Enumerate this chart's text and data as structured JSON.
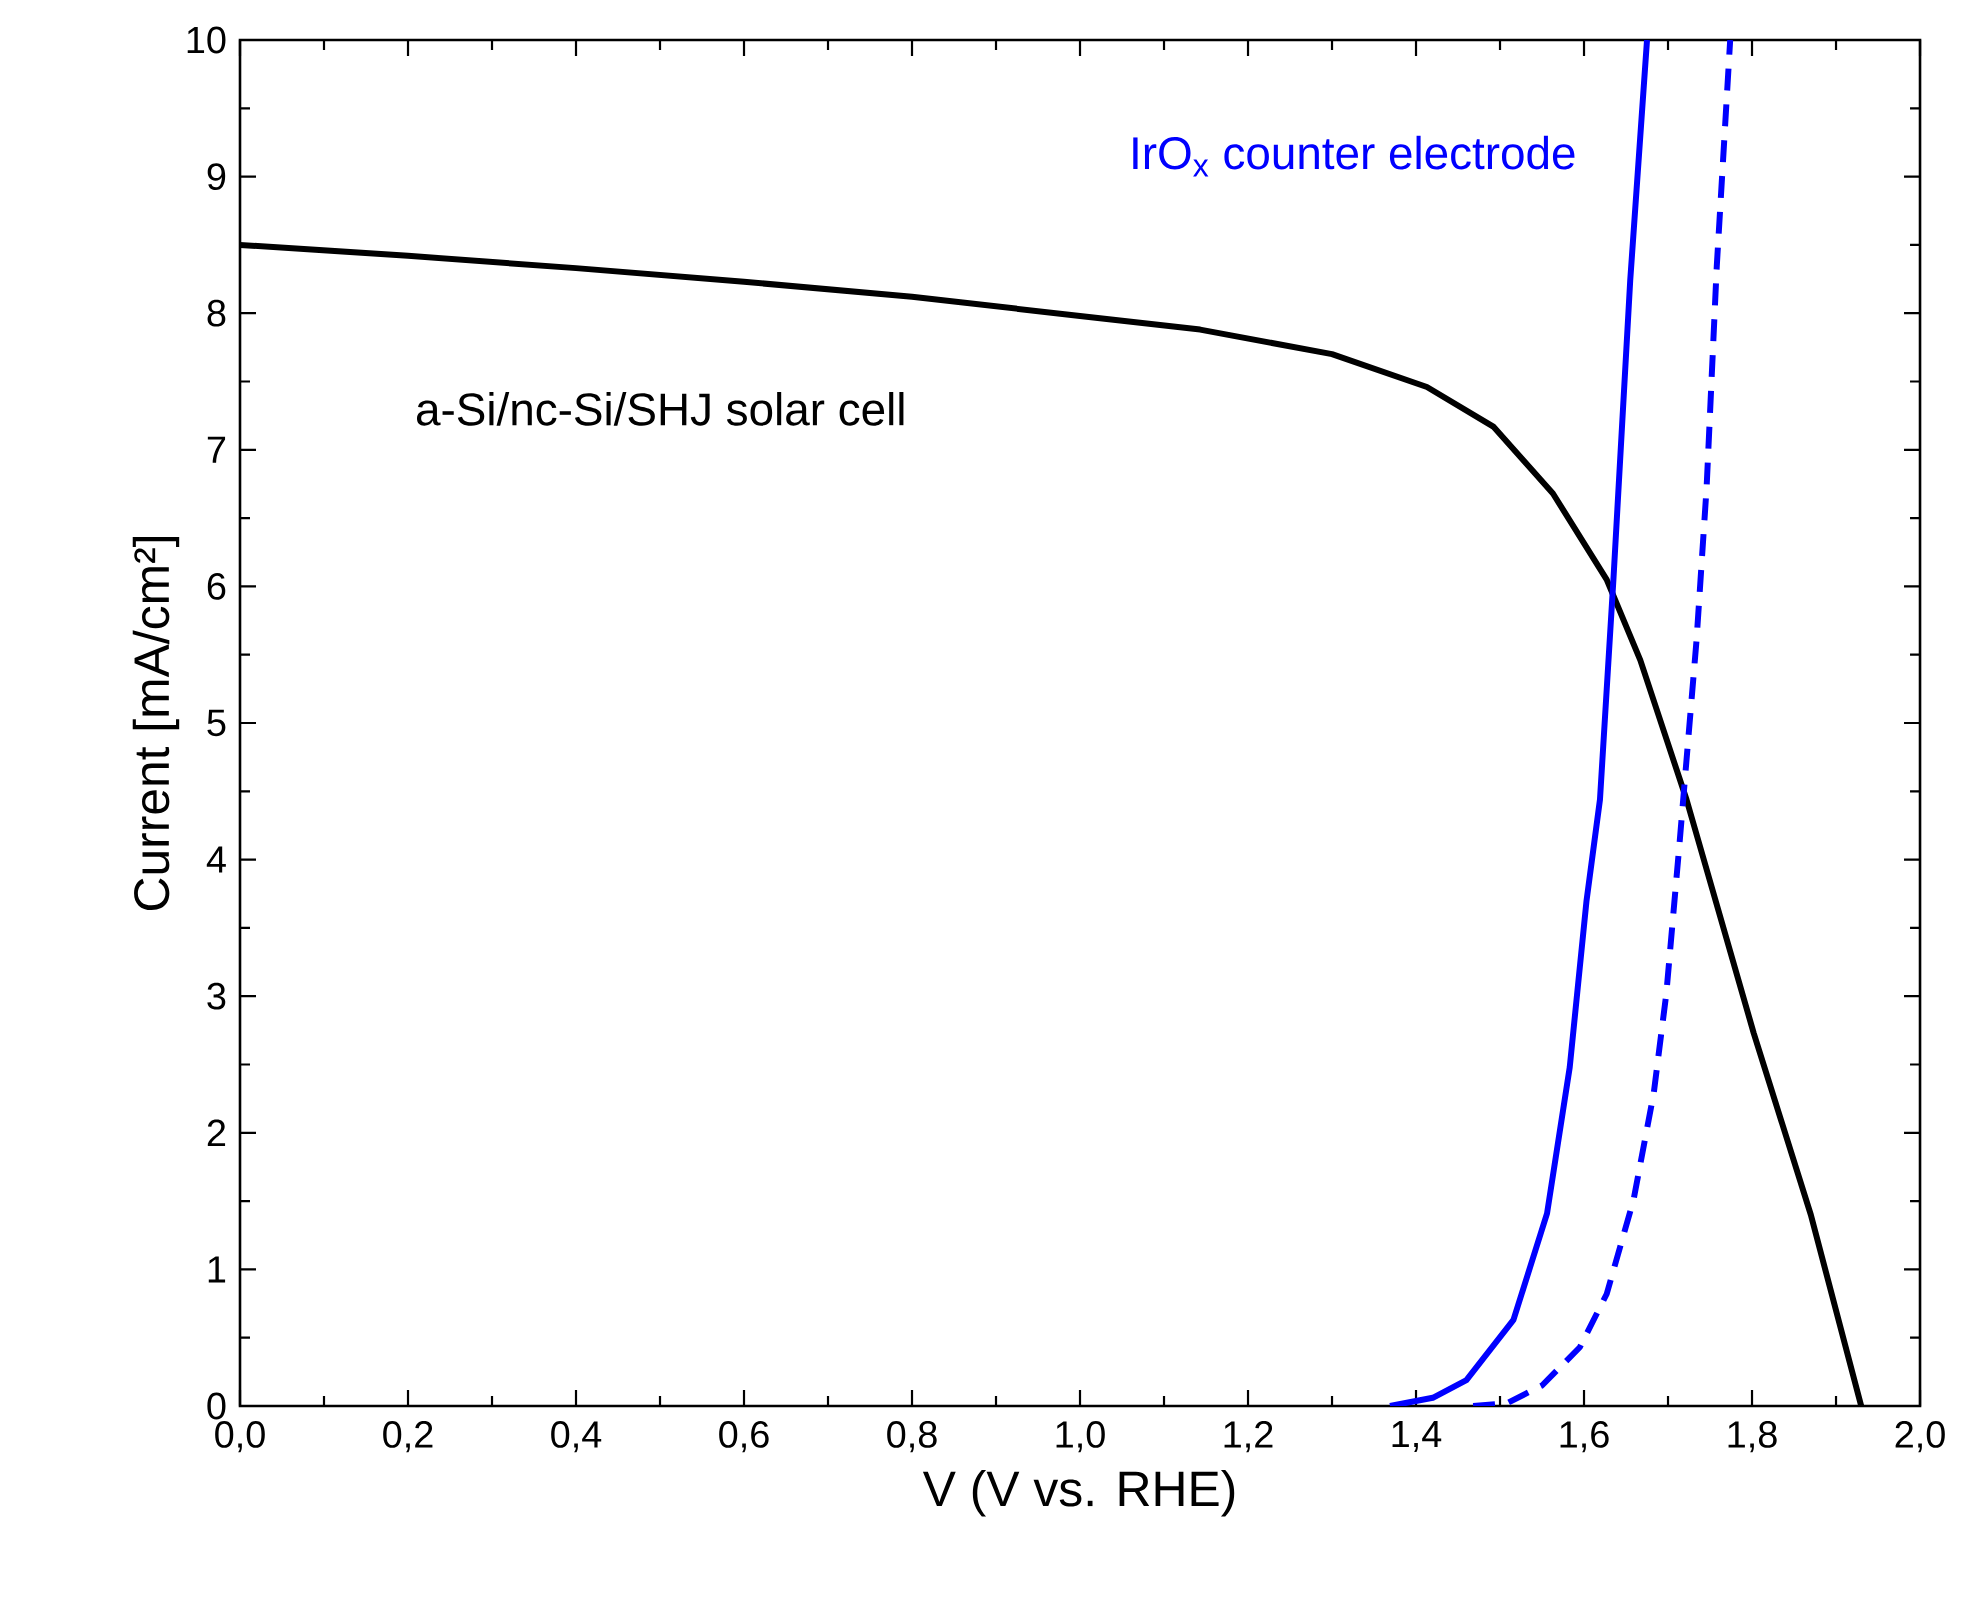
{
  "chart_data": {
    "type": "line",
    "xlabel": "V (V vs. RHE)",
    "ylabel": "Current [mA/cm²]",
    "xlim": [
      0,
      2
    ],
    "ylim": [
      0,
      10
    ],
    "xticks": [
      {
        "value": 0,
        "label": "0,0"
      },
      {
        "value": 0.2,
        "label": "0,2"
      },
      {
        "value": 0.4,
        "label": "0,4"
      },
      {
        "value": 0.6,
        "label": "0,6"
      },
      {
        "value": 0.8,
        "label": "0,8"
      },
      {
        "value": 1.0,
        "label": "1,0"
      },
      {
        "value": 1.2,
        "label": "1,2"
      },
      {
        "value": 1.4,
        "label": "1,4"
      },
      {
        "value": 1.6,
        "label": "1,6"
      },
      {
        "value": 1.8,
        "label": "1,8"
      },
      {
        "value": 2.0,
        "label": "2,0"
      }
    ],
    "yticks": [
      0,
      1,
      2,
      3,
      4,
      5,
      6,
      7,
      8,
      9,
      10
    ],
    "grid": false,
    "marker": "none",
    "series": [
      {
        "name": "a-Si/nc-Si/SHJ solar cell",
        "color": "#000000",
        "line_style": "solid",
        "x": [
          0,
          0.2,
          0.4,
          0.6,
          0.8,
          1.0,
          1.143,
          1.3,
          1.413,
          1.492,
          1.563,
          1.627,
          1.667,
          1.722,
          1.802,
          1.87,
          1.93
        ],
        "values": [
          8.5,
          8.42,
          8.33,
          8.23,
          8.12,
          7.98,
          7.88,
          7.7,
          7.46,
          7.17,
          6.68,
          6.05,
          5.46,
          4.44,
          2.73,
          1.4,
          0
        ]
      },
      {
        "name": "IrO$_{x}$ counter electrode",
        "color": "#0000ff",
        "line_style": "solid",
        "x": [
          1.369,
          1.42,
          1.46,
          1.516,
          1.556,
          1.583,
          1.603,
          1.619,
          1.635,
          1.655,
          1.675
        ],
        "values": [
          0,
          0.06,
          0.19,
          0.63,
          1.41,
          2.48,
          3.7,
          4.44,
          6.05,
          8.24,
          10
        ]
      },
      {
        "color": "#0000ff",
        "line_style": "dashed",
        "x": [
          1.468,
          1.508,
          1.55,
          1.595,
          1.627,
          1.659,
          1.683,
          1.698,
          1.714,
          1.734,
          1.746,
          1.758,
          1.774
        ],
        "values": [
          0,
          0.02,
          0.15,
          0.43,
          0.82,
          1.51,
          2.29,
          3.02,
          4.14,
          5.61,
          6.73,
          8.34,
          10
        ]
      }
    ]
  }
}
